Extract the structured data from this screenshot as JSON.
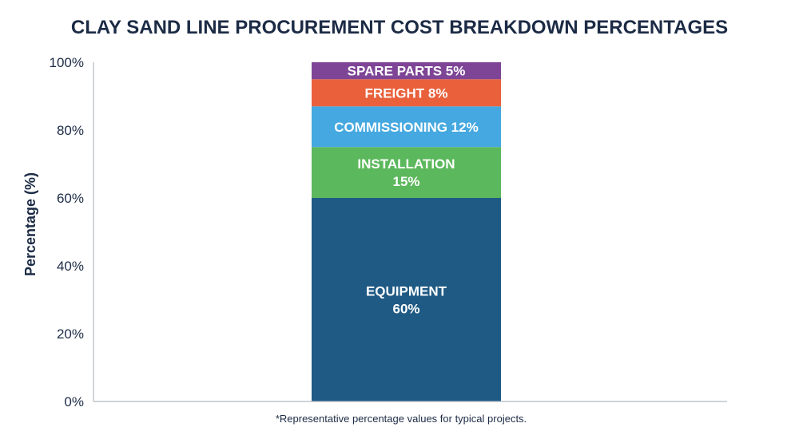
{
  "chart_data": {
    "type": "bar",
    "stacked": true,
    "title": "CLAY SAND LINE PROCUREMENT COST BREAKDOWN PERCENTAGES",
    "ylabel": "Percentage (%)",
    "xlabel": "",
    "ylim": [
      0,
      100
    ],
    "yticks": [
      "0%",
      "20%",
      "40%",
      "60%",
      "80%",
      "100%"
    ],
    "grid": false,
    "footnote": "*Representative percentage values for typical projects.",
    "series": [
      {
        "name": "EQUIPMENT",
        "value": 60,
        "color": "#1f5a85",
        "label_lines": [
          "EQUIPMENT",
          "60%"
        ]
      },
      {
        "name": "INSTALLATION",
        "value": 15,
        "color": "#5cb85c",
        "label_lines": [
          "INSTALLATION",
          "15%"
        ]
      },
      {
        "name": "COMMISSIONING",
        "value": 12,
        "color": "#45a8e0",
        "label_lines": [
          "COMMISSIONING 12%"
        ]
      },
      {
        "name": "FREIGHT",
        "value": 8,
        "color": "#e9603a",
        "label_lines": [
          "FREIGHT 8%"
        ]
      },
      {
        "name": "SPARE PARTS",
        "value": 5,
        "color": "#7e4596",
        "label_lines": [
          "SPARE PARTS 5%"
        ]
      }
    ]
  }
}
